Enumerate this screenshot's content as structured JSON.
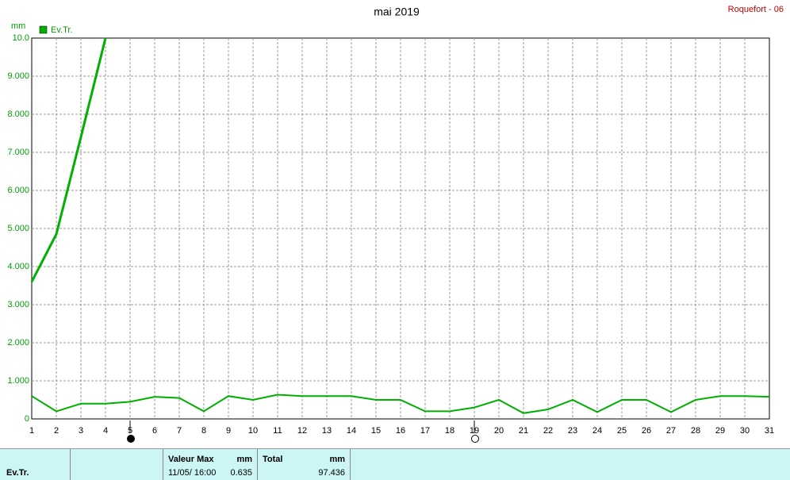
{
  "chart_data": {
    "type": "line",
    "title": "mai 2019",
    "station": "Roquefort - 06",
    "y_unit": "mm",
    "xlim": [
      1,
      31
    ],
    "xticks": [
      1,
      2,
      3,
      4,
      5,
      6,
      7,
      8,
      9,
      10,
      11,
      12,
      13,
      14,
      15,
      16,
      17,
      18,
      19,
      20,
      21,
      22,
      23,
      24,
      25,
      26,
      27,
      28,
      29,
      30,
      31
    ],
    "ylim": [
      0,
      10
    ],
    "yticks": [
      0,
      {
        "value": 1,
        "label": "1.000"
      },
      {
        "value": 2,
        "label": "2.000"
      },
      {
        "value": 3,
        "label": "3.000"
      },
      {
        "value": 4,
        "label": "4.000"
      },
      {
        "value": 5,
        "label": "5.000"
      },
      {
        "value": 6,
        "label": "6.000"
      },
      {
        "value": 7,
        "label": "7.000"
      },
      {
        "value": 8,
        "label": "8.000"
      },
      {
        "value": 9,
        "label": "9.000"
      },
      {
        "value": 10,
        "label": "10.0"
      }
    ],
    "grid": true,
    "legend": "top-left",
    "series": [
      {
        "name": "Ev.Tr.",
        "color": "#00b000",
        "width": 2,
        "x": [
          1,
          2,
          3,
          4,
          5,
          6,
          7,
          8,
          9,
          10,
          11,
          12,
          13,
          14,
          15,
          16,
          17,
          18,
          19,
          20,
          21,
          22,
          23,
          24,
          25,
          26,
          27,
          28,
          29,
          30,
          31
        ],
        "values": [
          0.6,
          0.2,
          0.4,
          0.4,
          0.45,
          0.58,
          0.55,
          0.2,
          0.6,
          0.5,
          0.635,
          0.6,
          0.6,
          0.6,
          0.5,
          0.5,
          0.2,
          0.2,
          0.3,
          0.5,
          0.15,
          0.25,
          0.5,
          0.18,
          0.5,
          0.5,
          0.18,
          0.5,
          0.6,
          0.6,
          0.58
        ]
      },
      {
        "color": "#00b000",
        "width": 3,
        "x": [
          1,
          2,
          3,
          4
        ],
        "values": [
          3.6,
          4.85,
          7.4,
          10.0
        ]
      }
    ],
    "markers": [
      {
        "x": 5,
        "filled": true
      },
      {
        "x": 19,
        "filled": false
      }
    ]
  },
  "table": {
    "series": "Ev.Tr.",
    "max_header": "Valeur Max",
    "max_unit": "mm",
    "max_date": "11/05/ 16:00",
    "max_value": "0.635",
    "total_header": "Total",
    "total_unit": "mm",
    "total_value": "97.436"
  }
}
